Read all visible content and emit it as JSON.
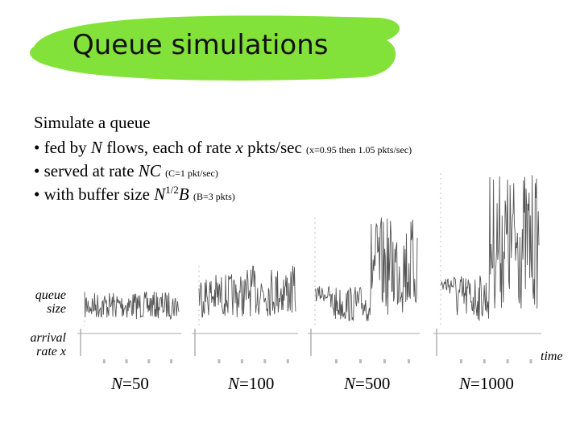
{
  "title": "Queue simulations",
  "intro": "Simulate a queue",
  "bullets": [
    [
      "• fed by ",
      "N",
      " flows, each of rate ",
      "x",
      " pkts/sec ",
      "(x=0.95 then 1.05 pkts/sec)"
    ],
    [
      "• served at rate ",
      "NC",
      " ",
      "(C=1 pkt/sec)"
    ],
    [
      "• with buffer size ",
      "N",
      "1/2",
      "B",
      " ",
      "(B=3 pkts)"
    ]
  ],
  "labels": {
    "queue": [
      "queue",
      "size"
    ],
    "arrival": [
      "arrival",
      "rate x"
    ],
    "time": "time"
  },
  "captions": [
    [
      "N",
      "=50"
    ],
    [
      "N",
      "=100"
    ],
    [
      "N",
      "=500"
    ],
    [
      "N",
      "=1000"
    ]
  ]
}
